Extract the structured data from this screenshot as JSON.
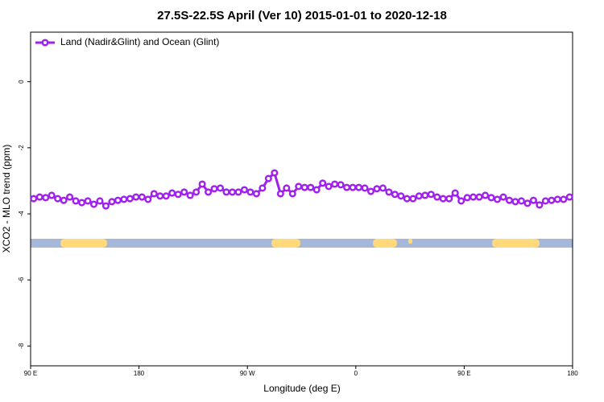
{
  "chart_data": {
    "type": "line",
    "title": "27.5S-22.5S April (Ver 10)   2015-01-01 to 2020-12-18",
    "x_label": "Longitude (deg E)",
    "y_label": "XCO2 - MLO trend (ppm)",
    "x": [
      92.5,
      97.5,
      102.5,
      107.5,
      112.5,
      117.5,
      122.5,
      127.5,
      132.5,
      137.5,
      142.5,
      147.5,
      152.5,
      157.5,
      162.5,
      167.5,
      172.5,
      177.5,
      182.5,
      187.5,
      192.5,
      197.5,
      202.5,
      207.5,
      212.5,
      217.5,
      222.5,
      227.5,
      232.5,
      237.5,
      242.5,
      247.5,
      252.5,
      257.5,
      262.5,
      267.5,
      272.5,
      277.5,
      282.5,
      287.5,
      292.5,
      297.5,
      302.5,
      307.5,
      312.5,
      317.5,
      322.5,
      327.5,
      332.5,
      337.5,
      342.5,
      347.5,
      352.5,
      357.5,
      362.5,
      367.5,
      372.5,
      377.5,
      382.5,
      387.5,
      392.5,
      397.5,
      402.5,
      407.5,
      412.5,
      417.5,
      422.5,
      427.5,
      432.5,
      437.5,
      442.5,
      447.5,
      452.5,
      457.5,
      462.5,
      467.5,
      472.5,
      477.5,
      482.5,
      487.5,
      492.5,
      497.5,
      502.5,
      507.5,
      512.5,
      517.5,
      522.5,
      527.5,
      532.5,
      537.5
    ],
    "series": [
      {
        "name": "Land (Nadir&Glint) and Ocean (Glint)",
        "color": "#a020f0",
        "values": [
          -3.54,
          -3.49,
          -3.51,
          -3.44,
          -3.54,
          -3.59,
          -3.49,
          -3.61,
          -3.66,
          -3.61,
          -3.71,
          -3.61,
          -3.76,
          -3.63,
          -3.59,
          -3.56,
          -3.54,
          -3.49,
          -3.49,
          -3.56,
          -3.39,
          -3.46,
          -3.46,
          -3.37,
          -3.41,
          -3.34,
          -3.44,
          -3.34,
          -3.1,
          -3.34,
          -3.24,
          -3.22,
          -3.34,
          -3.34,
          -3.34,
          -3.27,
          -3.34,
          -3.39,
          -3.22,
          -2.93,
          -2.76,
          -3.39,
          -3.22,
          -3.39,
          -3.17,
          -3.2,
          -3.2,
          -3.27,
          -3.07,
          -3.17,
          -3.1,
          -3.12,
          -3.2,
          -3.2,
          -3.2,
          -3.22,
          -3.32,
          -3.24,
          -3.22,
          -3.34,
          -3.41,
          -3.46,
          -3.54,
          -3.54,
          -3.46,
          -3.44,
          -3.41,
          -3.49,
          -3.54,
          -3.54,
          -3.37,
          -3.61,
          -3.51,
          -3.49,
          -3.49,
          -3.44,
          -3.51,
          -3.56,
          -3.49,
          -3.59,
          -3.63,
          -3.61,
          -3.68,
          -3.59,
          -3.73,
          -3.61,
          -3.59,
          -3.56,
          -3.56,
          -3.49
        ]
      }
    ],
    "xlim": [
      90,
      540
    ],
    "xticks": [
      {
        "value": 90,
        "label": "90 E"
      },
      180,
      {
        "value": 270,
        "label": "90 W"
      },
      {
        "value": 360,
        "label": "0"
      },
      {
        "value": 450,
        "label": "90 E"
      },
      {
        "value": 540,
        "label": "180"
      }
    ],
    "ylim": [
      -8.6,
      1.5
    ],
    "yticks": [
      0,
      -2,
      -4,
      -6,
      -8
    ],
    "legend": "top-left"
  }
}
